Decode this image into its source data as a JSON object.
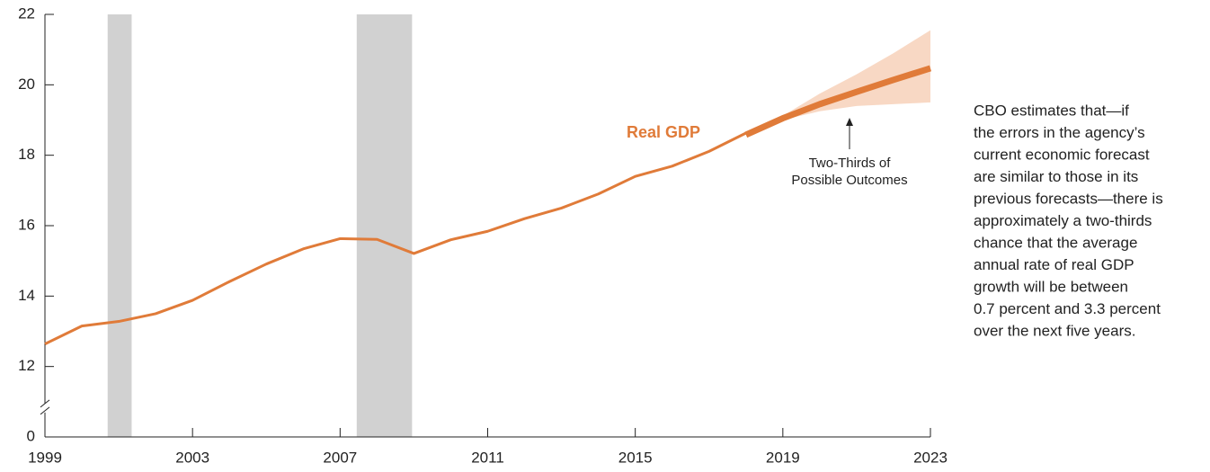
{
  "chart_data": {
    "type": "line",
    "x": [
      1999,
      2000,
      2001,
      2002,
      2003,
      2004,
      2005,
      2006,
      2007,
      2008,
      2009,
      2010,
      2011,
      2012,
      2013,
      2014,
      2015,
      2016,
      2017,
      2018
    ],
    "series": [
      {
        "name": "Real GDP",
        "color": "#e07b39",
        "values": [
          12.64,
          13.15,
          13.28,
          13.5,
          13.88,
          14.41,
          14.91,
          15.34,
          15.63,
          15.61,
          15.21,
          15.6,
          15.84,
          16.2,
          16.5,
          16.9,
          17.4,
          17.69,
          18.11,
          18.63
        ]
      }
    ],
    "forecast": {
      "x": [
        2018,
        2019,
        2020,
        2021,
        2022,
        2023
      ],
      "values": [
        18.58,
        19.05,
        19.45,
        19.8,
        20.14,
        20.47
      ],
      "band_x": [
        2019,
        2020,
        2021,
        2022,
        2023
      ],
      "band_upper": [
        19.12,
        19.75,
        20.3,
        20.9,
        21.55
      ],
      "band_lower": [
        19.0,
        19.25,
        19.4,
        19.45,
        19.5
      ],
      "band_color": "#f8d8c4"
    },
    "recessions": [
      [
        2000.7,
        2001.35
      ],
      [
        2007.45,
        2008.95
      ]
    ],
    "recession_color": "#d1d1d1",
    "xlim": [
      1999,
      2023
    ],
    "xticks": [
      1999,
      2003,
      2007,
      2011,
      2015,
      2019,
      2023
    ],
    "ylim": [
      10,
      22
    ],
    "yticks": [
      0,
      12,
      14,
      16,
      18,
      20,
      22
    ],
    "axis_break": true,
    "annotations": {
      "band_label": [
        "Two-Thirds of",
        "Possible Outcomes"
      ],
      "side_note": [
        "CBO estimates that—if",
        "the errors in the agency’s",
        "current economic forecast",
        "are similar to those in its",
        "previous forecasts—there is",
        "approximately a two-thirds",
        "chance that the average",
        "annual rate of real GDP",
        "growth will be between",
        "0.7 percent and 3.3 percent",
        "over the next five years."
      ]
    }
  }
}
